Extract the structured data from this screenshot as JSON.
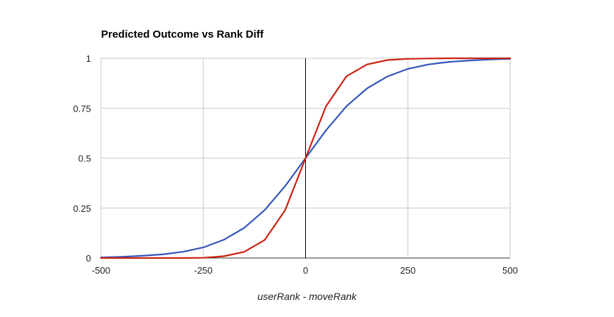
{
  "chart_data": {
    "type": "line",
    "title": "Predicted Outcome vs Rank Diff",
    "xlabel": "userRank - moveRank",
    "ylabel": "",
    "xlim": [
      -500,
      500
    ],
    "ylim": [
      0,
      1
    ],
    "xticks": [
      "-500",
      "-250",
      "0",
      "250",
      "500"
    ],
    "yticks": [
      "0",
      "0.25",
      "0.5",
      "0.75",
      "1"
    ],
    "xtick_values": [
      -500,
      -250,
      0,
      250,
      500
    ],
    "ytick_values": [
      0,
      0.25,
      0.5,
      0.75,
      1
    ],
    "grid": true,
    "legend": "none",
    "x": [
      -500,
      -450,
      -400,
      -350,
      -300,
      -250,
      -200,
      -150,
      -100,
      -50,
      0,
      50,
      100,
      150,
      200,
      250,
      300,
      350,
      400,
      450,
      500
    ],
    "series": [
      {
        "color": "#3355bb",
        "values": [
          0.003,
          0.006,
          0.011,
          0.018,
          0.031,
          0.053,
          0.091,
          0.151,
          0.24,
          0.36,
          0.5,
          0.64,
          0.76,
          0.849,
          0.909,
          0.947,
          0.969,
          0.982,
          0.989,
          0.994,
          0.997
        ]
      },
      {
        "color": "#cc2211",
        "values": [
          0.0,
          0.0,
          0.0,
          0.0,
          0.0,
          0.001,
          0.009,
          0.031,
          0.09,
          0.24,
          0.5,
          0.76,
          0.91,
          0.969,
          0.991,
          0.997,
          0.999,
          1.0,
          1.0,
          1.0,
          1.0
        ]
      }
    ],
    "colors": {
      "grid": "#c8c8c8",
      "axis": "#333333",
      "zero_line": "#000000"
    }
  }
}
